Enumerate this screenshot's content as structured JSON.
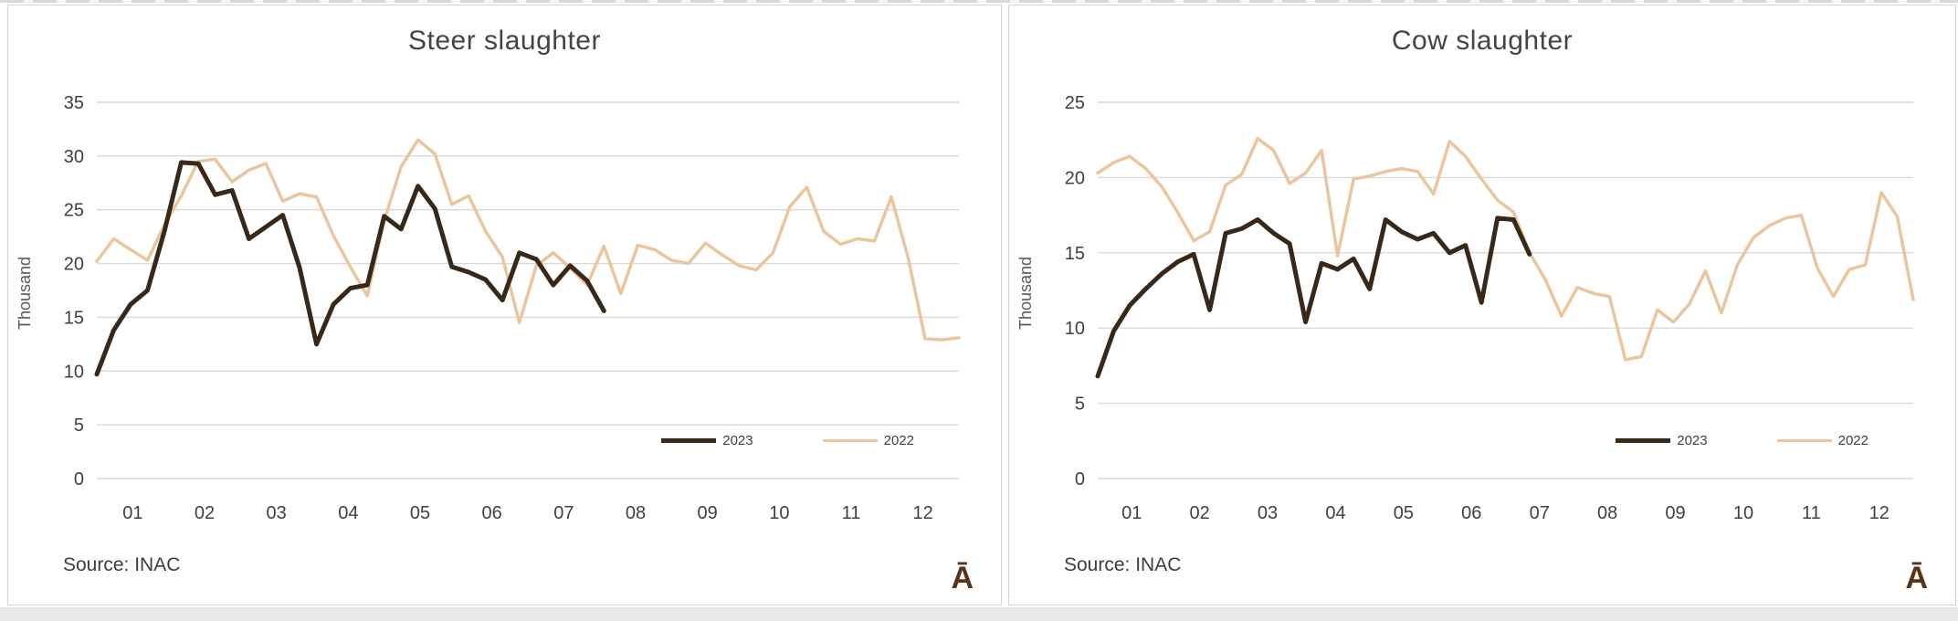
{
  "colors": {
    "grid": "#d9d9d9",
    "axis_text": "#404040",
    "panel_border": "#d4d4d4",
    "logo": "#5b3317",
    "series_2023": "#38281a",
    "series_2022": "#eac69e"
  },
  "chart_data": [
    {
      "type": "line",
      "title": "Steer slaughter",
      "ylabel": "Thousand",
      "source": "Source: INAC",
      "logo_glyph": "Ā",
      "ylim": [
        0,
        35
      ],
      "yticks": [
        0,
        5,
        10,
        15,
        20,
        25,
        30,
        35
      ],
      "x_categories": [
        "01",
        "02",
        "03",
        "04",
        "05",
        "06",
        "07",
        "08",
        "09",
        "10",
        "11",
        "12"
      ],
      "grid": true,
      "legend_position": "inside-bottom-right",
      "series": [
        {
          "name": "2023",
          "color": "#38281a",
          "values": [
            9.7,
            13.8,
            16.2,
            17.5,
            23.0,
            29.4,
            29.3,
            26.4,
            26.8,
            22.3,
            23.4,
            24.5,
            19.6,
            12.5,
            16.2,
            17.7,
            18.0,
            24.4,
            23.2,
            27.2,
            25.1,
            19.7,
            19.2,
            18.5,
            16.6,
            21.0,
            20.4,
            18.0,
            19.8,
            18.4,
            15.6
          ]
        },
        {
          "name": "2022",
          "color": "#eac69e",
          "values": [
            20.2,
            22.3,
            21.3,
            20.3,
            23.6,
            26.3,
            29.5,
            29.7,
            27.6,
            28.7,
            29.3,
            25.8,
            26.5,
            26.2,
            22.6,
            19.7,
            17.0,
            24.0,
            29.0,
            31.5,
            30.2,
            25.5,
            26.3,
            23.0,
            20.6,
            14.5,
            19.8,
            21.0,
            19.6,
            18.0,
            21.6,
            17.2,
            21.7,
            21.3,
            20.3,
            20.0,
            21.9,
            20.8,
            19.8,
            19.4,
            21.0,
            25.3,
            27.1,
            23.0,
            21.8,
            22.3,
            22.1,
            26.2,
            20.5,
            13.0,
            12.9,
            13.1
          ]
        }
      ]
    },
    {
      "type": "line",
      "title": "Cow slaughter",
      "ylabel": "Thousand",
      "source": "Source: INAC",
      "logo_glyph": "Ā",
      "ylim": [
        0,
        25
      ],
      "yticks": [
        0,
        5,
        10,
        15,
        20,
        25
      ],
      "x_categories": [
        "01",
        "02",
        "03",
        "04",
        "05",
        "06",
        "07",
        "08",
        "09",
        "10",
        "11",
        "12"
      ],
      "grid": true,
      "legend_position": "inside-bottom-right",
      "series": [
        {
          "name": "2023",
          "color": "#38281a",
          "values": [
            6.8,
            9.8,
            11.5,
            12.6,
            13.6,
            14.4,
            14.9,
            11.2,
            16.3,
            16.6,
            17.2,
            16.3,
            15.6,
            10.4,
            14.3,
            13.9,
            14.6,
            12.6,
            17.2,
            16.4,
            15.9,
            16.3,
            15.0,
            15.5,
            11.7,
            17.3,
            17.2,
            14.9
          ]
        },
        {
          "name": "2022",
          "color": "#eac69e",
          "values": [
            20.3,
            21.0,
            21.4,
            20.6,
            19.4,
            17.7,
            15.8,
            16.4,
            19.5,
            20.2,
            22.6,
            21.8,
            19.6,
            20.3,
            21.8,
            14.8,
            19.9,
            20.1,
            20.4,
            20.6,
            20.4,
            18.9,
            22.4,
            21.4,
            19.9,
            18.5,
            17.7,
            15.0,
            13.2,
            10.8,
            12.7,
            12.3,
            12.1,
            7.9,
            8.1,
            11.2,
            10.4,
            11.6,
            13.8,
            11.0,
            14.2,
            16.0,
            16.8,
            17.3,
            17.5,
            14.0,
            12.1,
            13.9,
            14.2,
            19.0,
            17.4,
            11.9
          ]
        }
      ]
    }
  ]
}
